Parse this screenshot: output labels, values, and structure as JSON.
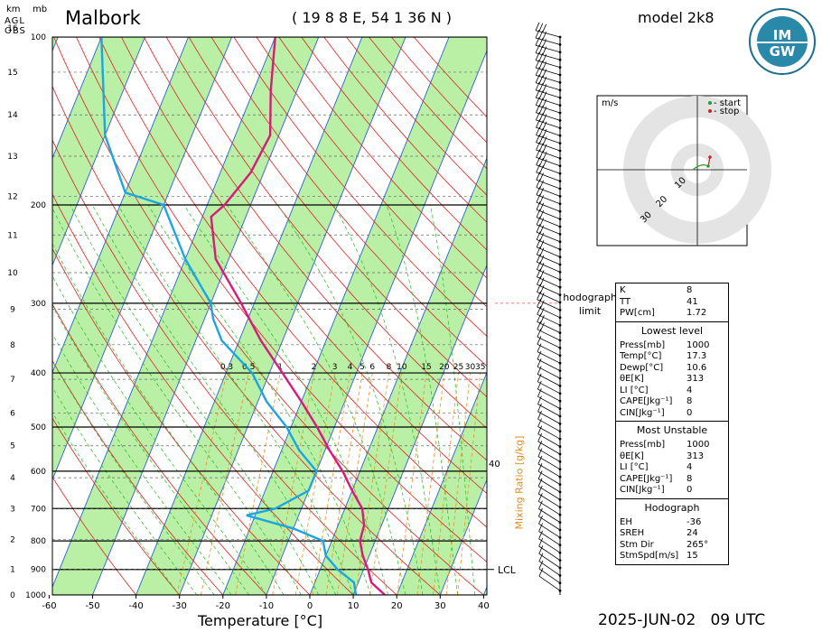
{
  "header": {
    "station": "Malbork",
    "coords": "( 19 8 8 E, 54 1 36 N )",
    "model": "model 2k8",
    "datetime": "2025-JUN-02   09 UTC",
    "logo_text": "IMGW"
  },
  "axes": {
    "height_unit_km": "km",
    "height_unit_agl": "AGL",
    "height_unit_obs": "OBS",
    "pressure_unit": "mb",
    "x_label": "Temperature [°C]",
    "mixing_ratio_label": "Mixing Ratio [g/kg]",
    "lcl_label": "LCL",
    "hodograph_limit_label": "hodograph limit"
  },
  "chart_data": {
    "type": "skew-T log-p",
    "pressure_ticks": [
      100,
      200,
      300,
      400,
      500,
      600,
      700,
      800,
      900,
      1000
    ],
    "height_ticks_km": [
      0,
      1,
      2,
      3,
      4,
      5,
      6,
      7,
      8,
      9,
      10,
      11,
      12,
      13,
      14,
      15,
      16
    ],
    "temperature_ticks": [
      -60,
      -50,
      -40,
      -30,
      -20,
      -10,
      0,
      10,
      20,
      30,
      40
    ],
    "mixing_ratio_ticks": [
      "0.3",
      "0.5",
      "1",
      "2",
      "3",
      "4",
      "5",
      "6",
      "8",
      "10",
      "15",
      "20",
      "25",
      "30",
      "35"
    ],
    "mixing_ratio_side_label": "40",
    "temperature_profile": [
      {
        "p": 1000,
        "t": 17.3
      },
      {
        "p": 950,
        "t": 13.0
      },
      {
        "p": 900,
        "t": 11.0
      },
      {
        "p": 850,
        "t": 8.5
      },
      {
        "p": 800,
        "t": 6.5
      },
      {
        "p": 750,
        "t": 6.0
      },
      {
        "p": 700,
        "t": 4.0
      },
      {
        "p": 650,
        "t": 0.0
      },
      {
        "p": 600,
        "t": -4.0
      },
      {
        "p": 550,
        "t": -9.0
      },
      {
        "p": 500,
        "t": -14.0
      },
      {
        "p": 450,
        "t": -20.0
      },
      {
        "p": 400,
        "t": -27.0
      },
      {
        "p": 350,
        "t": -35.0
      },
      {
        "p": 300,
        "t": -43.0
      },
      {
        "p": 250,
        "t": -53.0
      },
      {
        "p": 210,
        "t": -58.0
      },
      {
        "p": 200,
        "t": -56.0
      },
      {
        "p": 175,
        "t": -53.0
      },
      {
        "p": 150,
        "t": -52.0
      },
      {
        "p": 125,
        "t": -56.0
      },
      {
        "p": 100,
        "t": -60.0
      }
    ],
    "dewpoint_profile": [
      {
        "p": 1000,
        "t": 10.6
      },
      {
        "p": 950,
        "t": 9.0
      },
      {
        "p": 900,
        "t": 4.0
      },
      {
        "p": 850,
        "t": 0.0
      },
      {
        "p": 800,
        "t": -2.0
      },
      {
        "p": 760,
        "t": -10.0
      },
      {
        "p": 720,
        "t": -22.0
      },
      {
        "p": 700,
        "t": -16.0
      },
      {
        "p": 650,
        "t": -10.0
      },
      {
        "p": 600,
        "t": -10.0
      },
      {
        "p": 550,
        "t": -16.0
      },
      {
        "p": 500,
        "t": -21.0
      },
      {
        "p": 450,
        "t": -28.0
      },
      {
        "p": 400,
        "t": -34.0
      },
      {
        "p": 350,
        "t": -44.0
      },
      {
        "p": 320,
        "t": -48.0
      },
      {
        "p": 300,
        "t": -50.0
      },
      {
        "p": 250,
        "t": -60.0
      },
      {
        "p": 200,
        "t": -70.0
      },
      {
        "p": 190,
        "t": -80.0
      },
      {
        "p": 150,
        "t": -90.0
      },
      {
        "p": 100,
        "t": -100.0
      }
    ],
    "lcl_pressure": 900,
    "hodograph_limit_pressure": 300
  },
  "hodograph": {
    "unit": "m/s",
    "legend_start": "- start",
    "legend_stop": "- stop",
    "ring_labels": [
      "10",
      "20",
      "30"
    ]
  },
  "params": {
    "top": [
      {
        "k": "K",
        "v": "8"
      },
      {
        "k": "TT",
        "v": "41"
      },
      {
        "k": "PW[cm]",
        "v": "1.72"
      }
    ],
    "lowest_title": "Lowest level",
    "lowest": [
      {
        "k": "Press[mb]",
        "v": "1000"
      },
      {
        "k": "Temp[°C]",
        "v": "17.3"
      },
      {
        "k": "Dewp[°C]",
        "v": "10.6"
      },
      {
        "k": "θE[K]",
        "v": "313"
      },
      {
        "k": "LI [°C]",
        "v": "4"
      },
      {
        "k": "CAPE[Jkg⁻¹]",
        "v": "8"
      },
      {
        "k": "CIN[Jkg⁻¹]",
        "v": "0"
      }
    ],
    "unstable_title": "Most Unstable",
    "unstable": [
      {
        "k": "Press[mb]",
        "v": "1000"
      },
      {
        "k": "θE[K]",
        "v": "313"
      },
      {
        "k": "LI [°C]",
        "v": "4"
      },
      {
        "k": "CAPE[Jkg⁻¹]",
        "v": "8"
      },
      {
        "k": "CIN[Jkg⁻¹]",
        "v": "0"
      }
    ],
    "hodo_title": "Hodograph",
    "hodo": [
      {
        "k": "EH",
        "v": "-36"
      },
      {
        "k": "SREH",
        "v": "24"
      },
      {
        "k": "Stm Dir",
        "v": "265°"
      },
      {
        "k": "StmSpd[m/s]",
        "v": "15"
      }
    ]
  },
  "colors": {
    "temperature": "#d81b7a",
    "dewpoint": "#1ea5e0",
    "isotherm_band": "#b9f0a5",
    "dry_adiabat": "#e02020",
    "moist_adiabat": "#22bb22",
    "mixing_ratio": "#f0901e",
    "isotherm_line": "#2a5fd8"
  }
}
